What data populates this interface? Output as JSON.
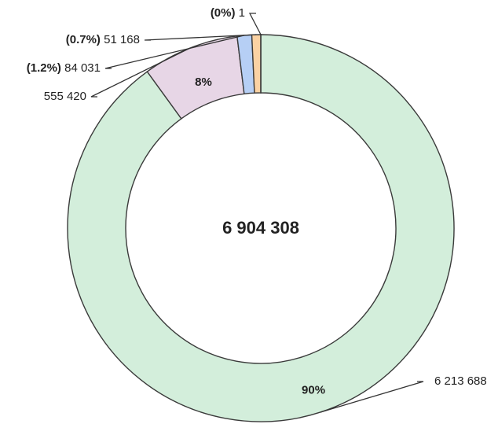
{
  "chart_data": {
    "type": "donut",
    "values": [
      6213688,
      555420,
      84031,
      51168,
      1
    ],
    "value_labels": [
      "6 213 688",
      "555 420",
      "84 031",
      "51 168",
      "1"
    ],
    "percent_labels": [
      "90%",
      "8%",
      "(1.2%)",
      "(0.7%)",
      "(0%)"
    ],
    "colors": [
      "#d3eedb",
      "#e7d6e6",
      "#b6cff5",
      "#fbd2a3",
      "#fbd2a3"
    ],
    "total": 6904308,
    "total_label": "6 904 308"
  }
}
